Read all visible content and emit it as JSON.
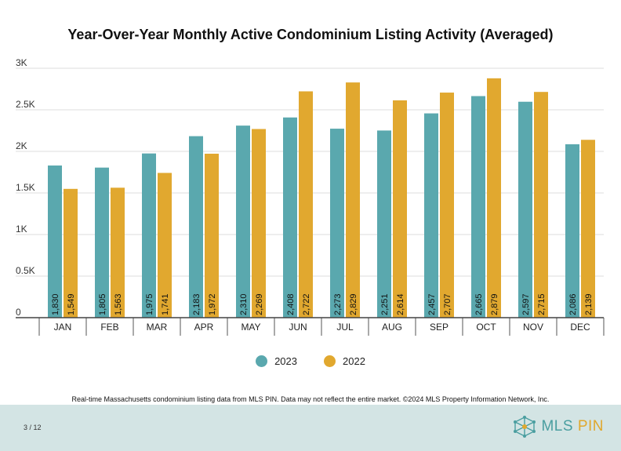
{
  "title": "Year-Over-Year Monthly Active Condominium Listing Activity (Averaged)",
  "footnote": "Real-time Massachusetts condominium listing data from MLS PIN. Data may not reflect the entire market. ©2024 MLS Property Information Network, Inc.",
  "page_number": "3 / 12",
  "logo": {
    "part1": "MLS ",
    "part2": "PIN",
    "icon": "network-cube-icon"
  },
  "colors": {
    "2023": "#5aa8ae",
    "2022": "#e1a82f"
  },
  "chart_data": {
    "type": "bar",
    "title": "Year-Over-Year Monthly Active Condominium Listing Activity (Averaged)",
    "categories": [
      "JAN",
      "FEB",
      "MAR",
      "APR",
      "MAY",
      "JUN",
      "JUL",
      "AUG",
      "SEP",
      "OCT",
      "NOV",
      "DEC"
    ],
    "series": [
      {
        "name": "2023",
        "values": [
          1830,
          1805,
          1975,
          2183,
          2310,
          2408,
          2273,
          2251,
          2457,
          2665,
          2597,
          2086
        ],
        "labels": [
          "1,830",
          "1,805",
          "1,975",
          "2,183",
          "2,310",
          "2,408",
          "2,273",
          "2,251",
          "2,457",
          "2,665",
          "2,597",
          "2,086"
        ]
      },
      {
        "name": "2022",
        "values": [
          1549,
          1563,
          1741,
          1972,
          2269,
          2722,
          2829,
          2614,
          2707,
          2879,
          2715,
          2139
        ],
        "labels": [
          "1,549",
          "1,563",
          "1,741",
          "1,972",
          "2,269",
          "2,722",
          "2,829",
          "2,614",
          "2,707",
          "2,879",
          "2,715",
          "2,139"
        ]
      }
    ],
    "y_ticks": [
      0,
      500,
      1000,
      1500,
      2000,
      2500,
      3000
    ],
    "y_tick_labels": [
      "0",
      "0.5K",
      "1K",
      "1.5K",
      "2K",
      "2.5K",
      "3K"
    ],
    "ylim": [
      0,
      3000
    ],
    "grid": true,
    "legend_position": "bottom"
  }
}
